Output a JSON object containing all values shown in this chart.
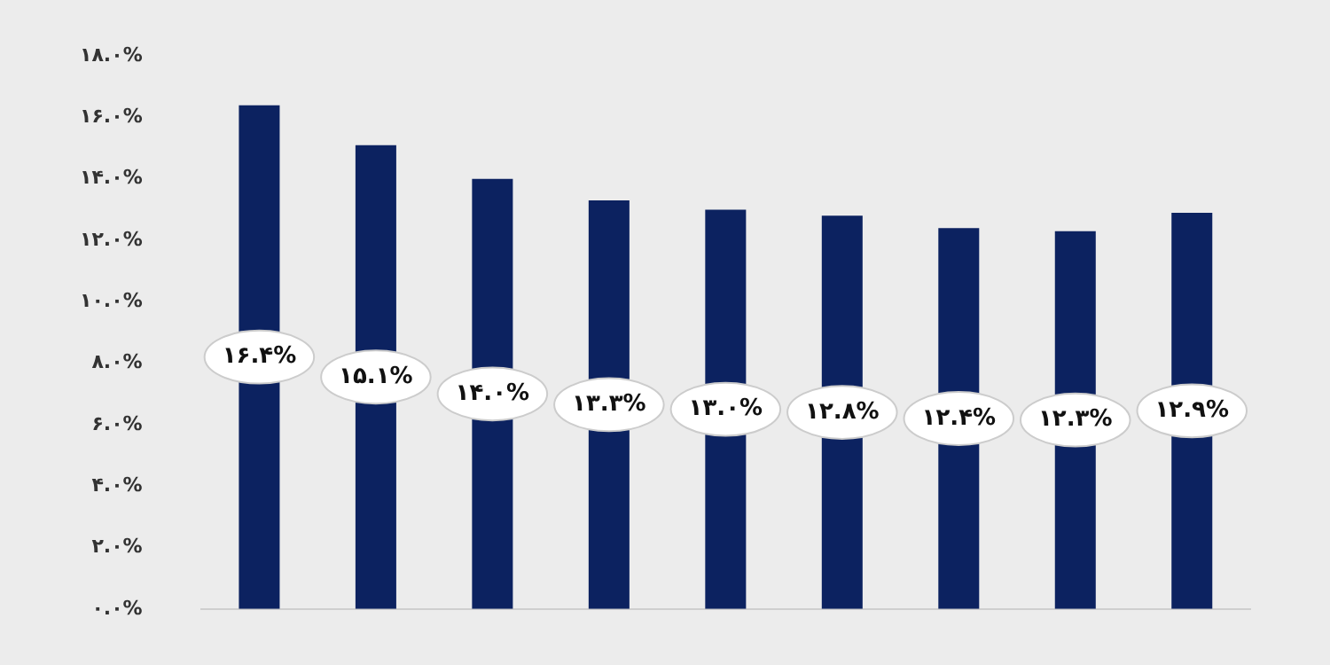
{
  "chart_data": {
    "type": "bar",
    "categories": [
      null,
      null,
      null,
      null,
      null,
      null,
      null,
      null,
      null
    ],
    "values": [
      16.4,
      15.1,
      14.0,
      13.3,
      13.0,
      12.8,
      12.4,
      12.3,
      12.9
    ],
    "value_labels": [
      "۱۶.۴%",
      "۱۵.۱%",
      "۱۴.۰%",
      "۱۳.۳%",
      "۱۳.۰%",
      "۱۲.۸%",
      "۱۲.۴%",
      "۱۲.۳%",
      "۱۲.۹%"
    ],
    "color": "#0c2260",
    "ylim": [
      0,
      18
    ],
    "yticks": [
      {
        "value": 0,
        "label": "۰.۰%"
      },
      {
        "value": 2,
        "label": "۲.۰%"
      },
      {
        "value": 4,
        "label": "۴.۰%"
      },
      {
        "value": 6,
        "label": "۶.۰%"
      },
      {
        "value": 8,
        "label": "۸.۰%"
      },
      {
        "value": 10,
        "label": "۱۰.۰%"
      },
      {
        "value": 12,
        "label": "۱۲.۰%"
      },
      {
        "value": 14,
        "label": "۱۴.۰%"
      },
      {
        "value": 16,
        "label": "۱۶.۰%"
      },
      {
        "value": 18,
        "label": "۱۸.۰%"
      }
    ],
    "grid": false,
    "legend": false
  }
}
